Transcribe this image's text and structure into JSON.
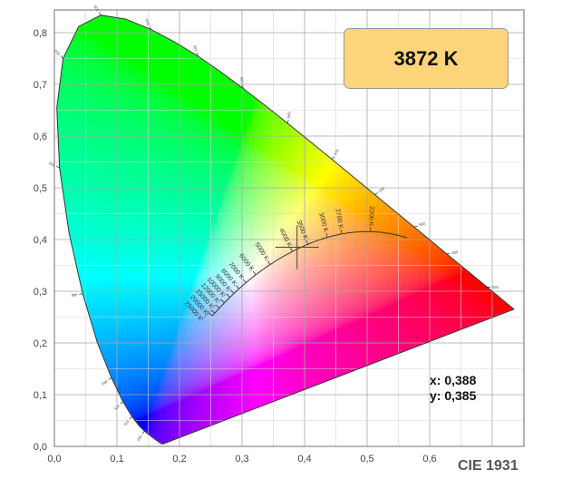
{
  "chart_data": {
    "type": "scatter",
    "title": "CIE 1931",
    "xlim": [
      0.0,
      0.75
    ],
    "ylim": [
      0.0,
      0.845
    ],
    "grid": true,
    "x_ticks": [
      "0,0",
      "0,1",
      "0,2",
      "0,3",
      "0,4",
      "0,5",
      "0,6"
    ],
    "y_ticks": [
      "0,0",
      "0,1",
      "0,2",
      "0,3",
      "0,4",
      "0,5",
      "0,6",
      "0,7",
      "0,8"
    ],
    "cct_label": "3872 K",
    "point": {
      "x": 0.388,
      "y": 0.385
    },
    "point_x_label": "x: 0,388",
    "point_y_label": "y: 0,385",
    "planckian_markers": [
      {
        "T": 25000,
        "label": "25000 K"
      },
      {
        "T": 20000,
        "label": "20000 K"
      },
      {
        "T": 15000,
        "label": "15000 K"
      },
      {
        "T": 12000,
        "label": "12000 K"
      },
      {
        "T": 10000,
        "label": "10000 K"
      },
      {
        "T": 9000,
        "label": "9000 K"
      },
      {
        "T": 8000,
        "label": "8000 K"
      },
      {
        "T": 7000,
        "label": "7000 K"
      },
      {
        "T": 6000,
        "label": "6000 K"
      },
      {
        "T": 5000,
        "label": "5000 K"
      },
      {
        "T": 4000,
        "label": "4000 K"
      },
      {
        "T": 3500,
        "label": "3500 K"
      },
      {
        "T": 3000,
        "label": "3000 K"
      },
      {
        "T": 2700,
        "label": "2700 K"
      },
      {
        "T": 2200,
        "label": "2200 K"
      }
    ],
    "wavelength_labels": [
      460,
      470,
      475,
      480,
      490,
      500,
      510,
      520,
      530,
      540,
      550,
      560,
      570,
      580,
      590,
      600,
      620
    ],
    "spectral_locus": [
      [
        380,
        0.1741,
        0.005
      ],
      [
        400,
        0.1733,
        0.0048
      ],
      [
        420,
        0.1714,
        0.0051
      ],
      [
        430,
        0.1689,
        0.0069
      ],
      [
        440,
        0.1644,
        0.0109
      ],
      [
        450,
        0.1566,
        0.0177
      ],
      [
        460,
        0.144,
        0.0297
      ],
      [
        465,
        0.1355,
        0.0399
      ],
      [
        470,
        0.1241,
        0.0578
      ],
      [
        475,
        0.1096,
        0.0868
      ],
      [
        480,
        0.0913,
        0.1327
      ],
      [
        485,
        0.0687,
        0.2007
      ],
      [
        490,
        0.0454,
        0.295
      ],
      [
        495,
        0.0235,
        0.4127
      ],
      [
        500,
        0.0082,
        0.5384
      ],
      [
        505,
        0.0039,
        0.6548
      ],
      [
        510,
        0.0139,
        0.7502
      ],
      [
        515,
        0.0389,
        0.812
      ],
      [
        520,
        0.0743,
        0.8338
      ],
      [
        525,
        0.1142,
        0.8262
      ],
      [
        530,
        0.1547,
        0.8059
      ],
      [
        535,
        0.1929,
        0.7816
      ],
      [
        540,
        0.2296,
        0.7543
      ],
      [
        545,
        0.2658,
        0.7243
      ],
      [
        550,
        0.3016,
        0.6923
      ],
      [
        555,
        0.3373,
        0.6589
      ],
      [
        560,
        0.3731,
        0.6245
      ],
      [
        565,
        0.4087,
        0.5896
      ],
      [
        570,
        0.4441,
        0.5547
      ],
      [
        575,
        0.4788,
        0.5202
      ],
      [
        580,
        0.5125,
        0.4866
      ],
      [
        585,
        0.5448,
        0.4544
      ],
      [
        590,
        0.5752,
        0.4242
      ],
      [
        595,
        0.6029,
        0.3965
      ],
      [
        600,
        0.627,
        0.3725
      ],
      [
        605,
        0.6482,
        0.3514
      ],
      [
        610,
        0.6658,
        0.334
      ],
      [
        620,
        0.6915,
        0.3083
      ],
      [
        630,
        0.7079,
        0.292
      ],
      [
        640,
        0.719,
        0.2809
      ],
      [
        700,
        0.7347,
        0.2653
      ]
    ],
    "colors": {
      "badge": "#fed57a",
      "badge_border": "#999999",
      "grid": "#b0b0b0",
      "locus": "#333333"
    }
  }
}
